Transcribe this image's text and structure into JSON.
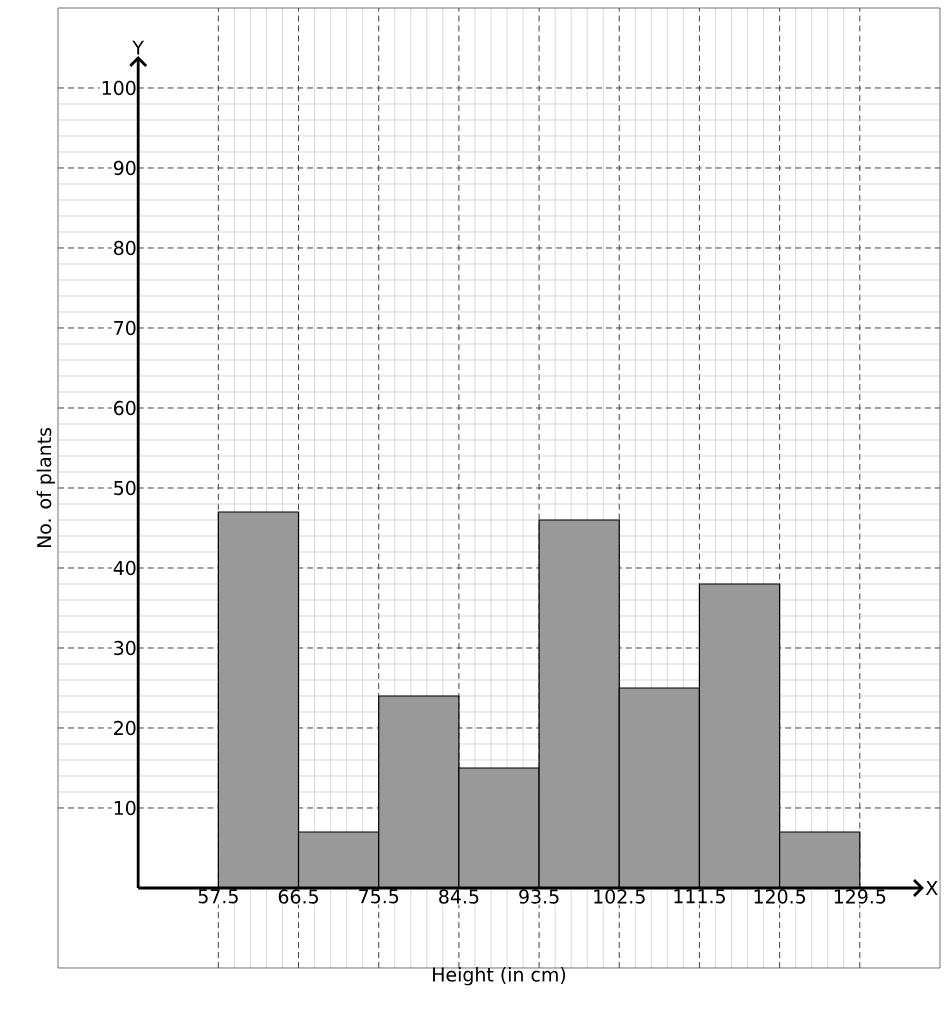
{
  "chart_data": {
    "type": "histogram",
    "xlabel": "Height (in cm)",
    "ylabel": "No. of plants",
    "annotations": [
      "X",
      "Y"
    ],
    "bins": [
      57.5,
      66.5,
      75.5,
      84.5,
      93.5,
      102.5,
      111.5,
      120.5,
      129.5
    ],
    "values": [
      47,
      7,
      24,
      15,
      46,
      25,
      38,
      7
    ],
    "color": "#999999",
    "xlim": [
      39.5,
      138.5
    ],
    "ylim": [
      -10,
      110
    ],
    "xticks": [
      57.5,
      66.5,
      75.5,
      84.5,
      93.5,
      102.5,
      111.5,
      120.5,
      129.5
    ],
    "yticks": [
      10,
      20,
      30,
      40,
      50,
      60,
      70,
      80,
      90,
      100
    ],
    "grid": true
  }
}
